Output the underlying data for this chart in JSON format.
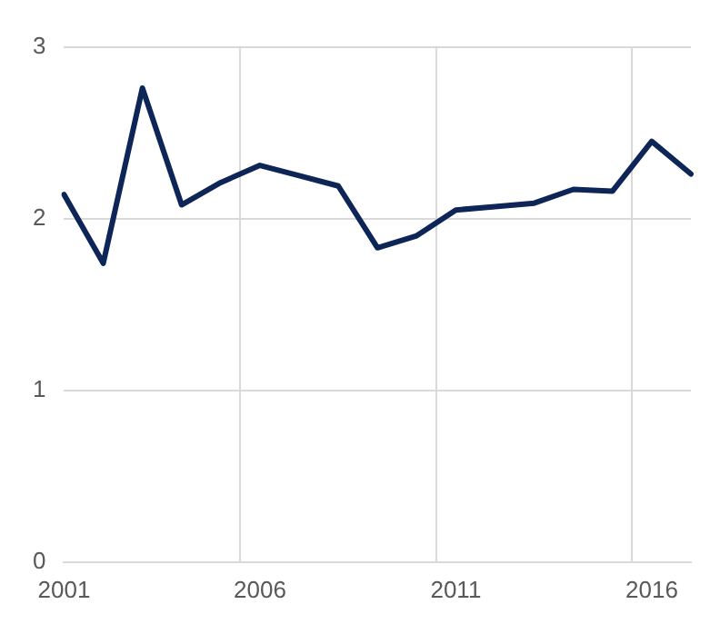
{
  "chart_data": {
    "type": "line",
    "categories": [
      "2001",
      null,
      null,
      null,
      null,
      "2006",
      null,
      null,
      null,
      null,
      "2011",
      null,
      null,
      null,
      null,
      "2016",
      null
    ],
    "series": [
      {
        "color": "#0e2557",
        "values": [
          2.14,
          1.74,
          2.76,
          2.08,
          2.21,
          2.31,
          2.25,
          2.19,
          1.83,
          1.9,
          2.05,
          2.07,
          2.09,
          2.17,
          2.16,
          2.45,
          2.26
        ]
      }
    ],
    "ylim": [
      0,
      3
    ],
    "yticks": [
      0,
      1,
      2,
      3
    ],
    "grid": true,
    "legend": false,
    "marker": "none",
    "line_style": "solid"
  }
}
